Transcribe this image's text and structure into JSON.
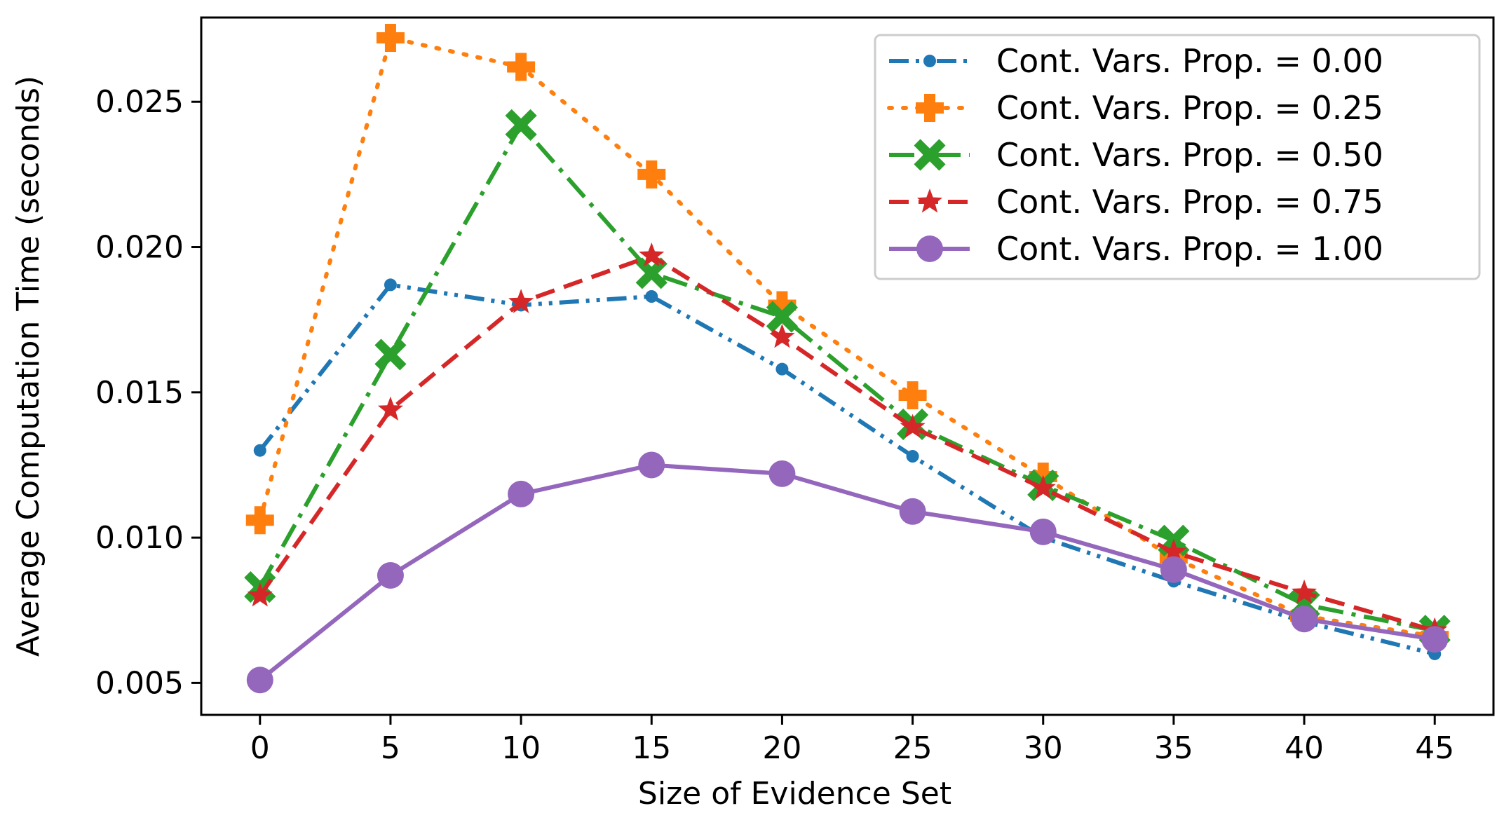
{
  "chart_data": {
    "type": "line",
    "title": "",
    "xlabel": "Size of Evidence Set",
    "ylabel": "Average Computation Time (seconds)",
    "x": [
      0,
      5,
      10,
      15,
      20,
      25,
      30,
      35,
      40,
      45
    ],
    "xticks": [
      0,
      5,
      10,
      15,
      20,
      25,
      30,
      35,
      40,
      45
    ],
    "xtick_labels": [
      "0",
      "5",
      "10",
      "15",
      "20",
      "25",
      "30",
      "35",
      "40",
      "45"
    ],
    "yticks": [
      0.005,
      0.01,
      0.015,
      0.02,
      0.025
    ],
    "ytick_labels": [
      "0.005",
      "0.010",
      "0.015",
      "0.020",
      "0.025"
    ],
    "xlim": [
      -2.25,
      47.25
    ],
    "ylim": [
      0.0039,
      0.0279
    ],
    "grid": false,
    "legend_position": "top-right",
    "series": [
      {
        "name": "Cont. Vars. Prop. = 0.00",
        "color": "#1f77b4",
        "dash": "dashdotdot",
        "marker": "dot",
        "values": [
          0.013,
          0.0187,
          0.018,
          0.0183,
          0.0158,
          0.0128,
          0.01,
          0.0085,
          0.0071,
          0.006
        ]
      },
      {
        "name": "Cont. Vars. Prop. = 0.25",
        "color": "#ff7f0e",
        "dash": "dotted",
        "marker": "plus",
        "values": [
          0.0106,
          0.0272,
          0.0262,
          0.0225,
          0.018,
          0.0149,
          0.0121,
          0.0093,
          0.0073,
          0.0066
        ]
      },
      {
        "name": "Cont. Vars. Prop. = 0.50",
        "color": "#2ca02c",
        "dash": "dashdot",
        "marker": "x",
        "values": [
          0.0083,
          0.0163,
          0.0242,
          0.0191,
          0.0176,
          0.0139,
          0.0118,
          0.0099,
          0.0077,
          0.0068
        ]
      },
      {
        "name": "Cont. Vars. Prop. = 0.75",
        "color": "#d62728",
        "dash": "dashed",
        "marker": "star",
        "values": [
          0.008,
          0.0144,
          0.0181,
          0.0197,
          0.0169,
          0.0138,
          0.0117,
          0.0095,
          0.0081,
          0.0068
        ]
      },
      {
        "name": "Cont. Vars. Prop. = 1.00",
        "color": "#9467bd",
        "dash": "solid",
        "marker": "circle",
        "values": [
          0.0051,
          0.0087,
          0.0115,
          0.0125,
          0.0122,
          0.0109,
          0.0102,
          0.0089,
          0.0072,
          0.0065
        ]
      }
    ]
  }
}
